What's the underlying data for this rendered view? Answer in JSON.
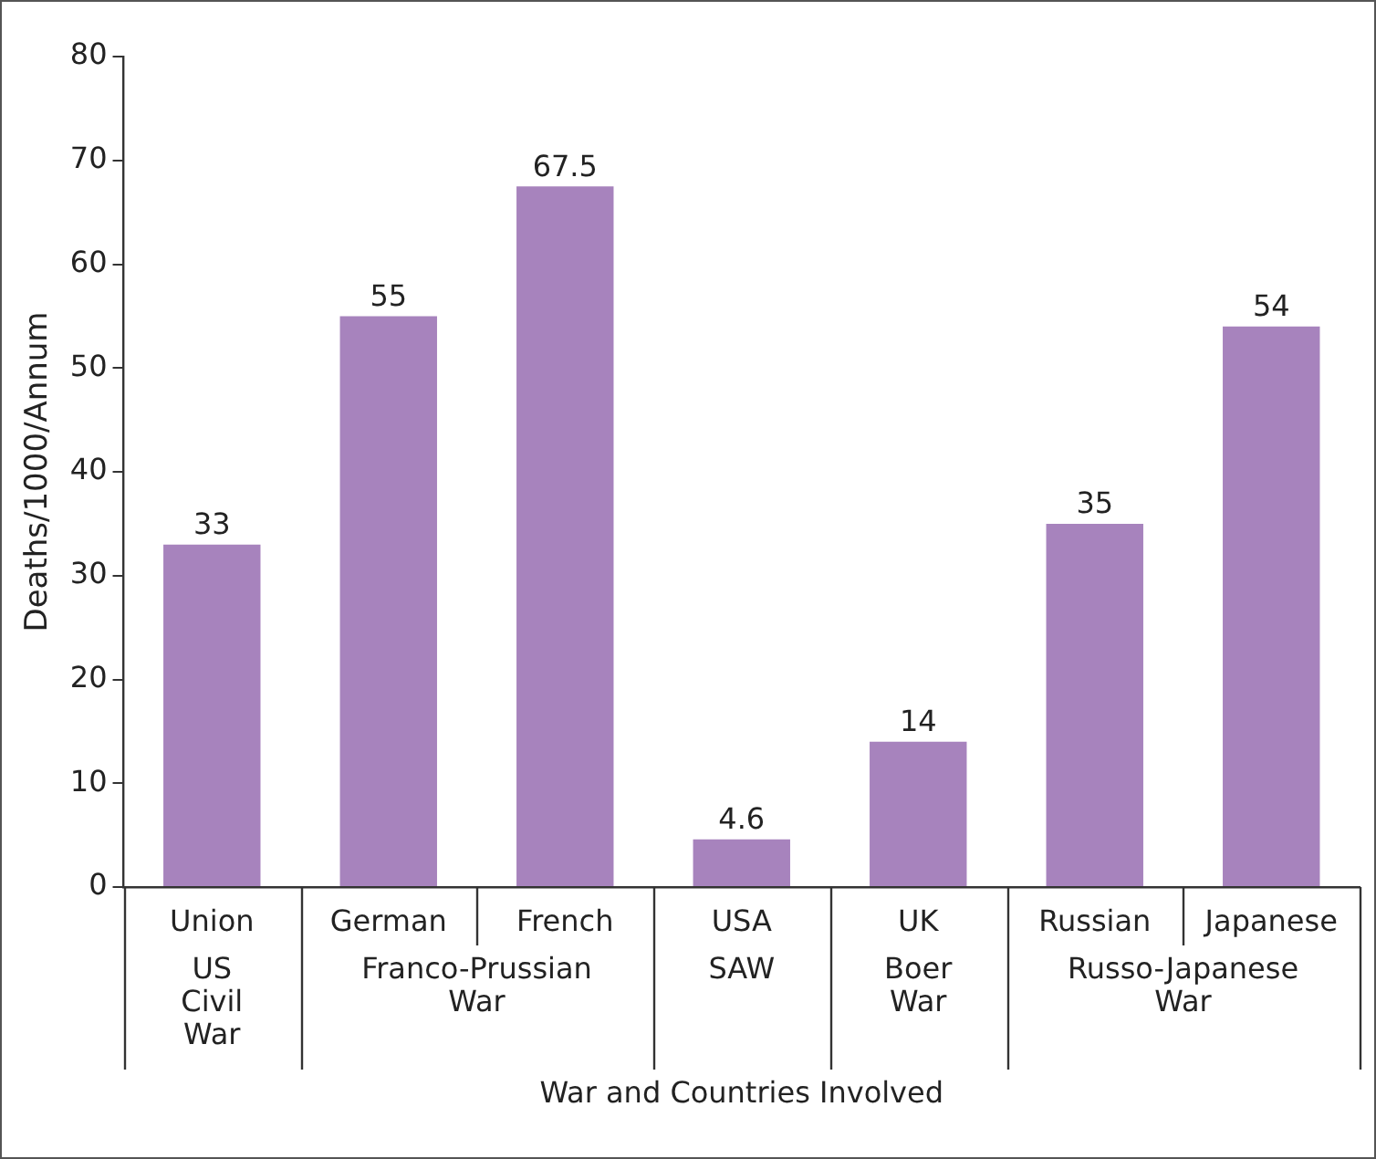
{
  "chart_data": {
    "type": "bar",
    "xlabel": "War and Countries Involved",
    "ylabel": "Deaths/1000/Annum",
    "categories": [
      "Union",
      "German",
      "French",
      "USA",
      "UK",
      "Russian",
      "Japanese"
    ],
    "values": [
      33,
      55,
      67.5,
      4.6,
      14,
      35,
      54
    ],
    "color": "#a783bd",
    "ylim": [
      0,
      80
    ],
    "yticks": [
      0,
      10,
      20,
      30,
      40,
      50,
      60,
      70,
      80
    ],
    "grid": false,
    "legend": false,
    "data_labels": true,
    "annotations": [
      "US Civil War",
      "Franco-Prussian War",
      "SAW",
      "Boer War",
      "Russo-Japanese War"
    ]
  }
}
